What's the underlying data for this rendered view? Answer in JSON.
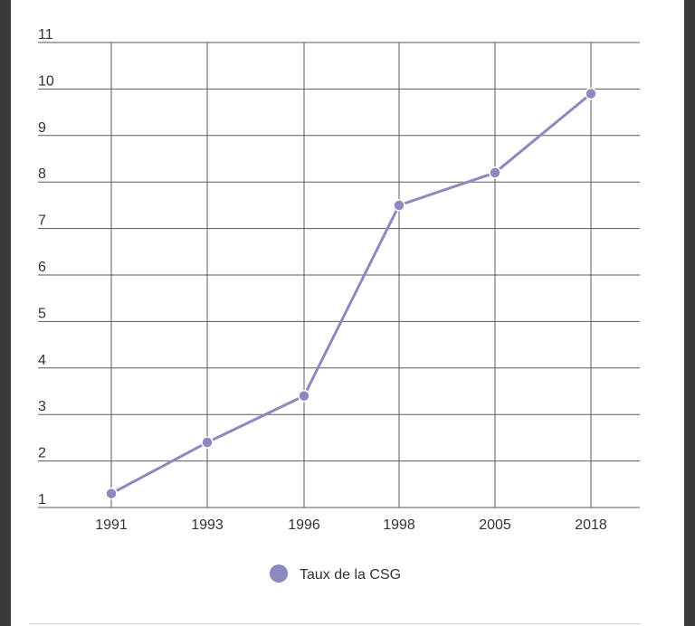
{
  "chart_data": {
    "type": "line",
    "categories": [
      "1991",
      "1993",
      "1996",
      "1998",
      "2005",
      "2018"
    ],
    "series": [
      {
        "name": "Taux de la CSG",
        "values": [
          1.3,
          2.4,
          3.4,
          7.5,
          8.2,
          9.9
        ]
      }
    ],
    "y_ticks": [
      "1",
      "2",
      "3",
      "4",
      "5",
      "6",
      "7",
      "8",
      "9",
      "10",
      "11"
    ],
    "ylim": [
      1,
      11
    ],
    "grid": true,
    "legend": "bottom-center",
    "colors": {
      "line": "#8c89bf",
      "grid": "#5a5a5a",
      "background": "#ffffff"
    }
  }
}
